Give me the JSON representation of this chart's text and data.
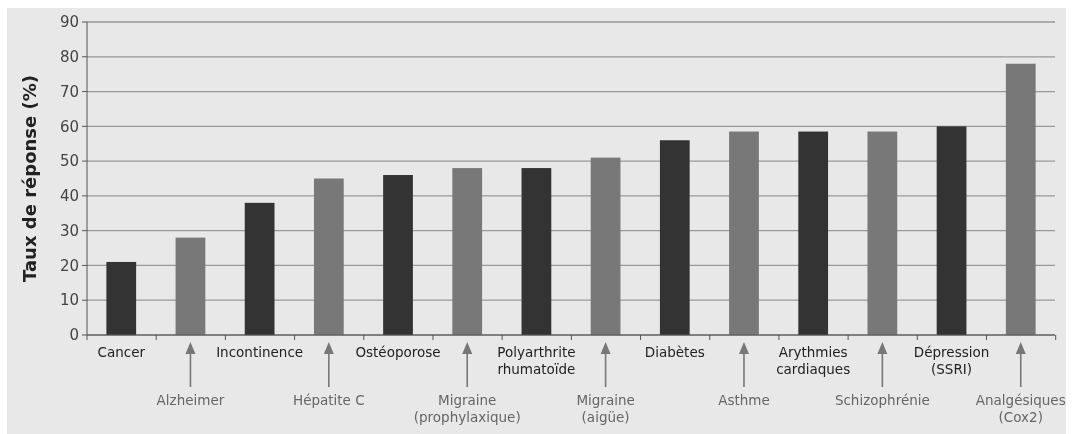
{
  "chart_data": {
    "type": "bar",
    "ylabel": "Taux de réponse (%)",
    "categories": [
      "Cancer",
      "Alzheimer",
      "Incontinence",
      "Hépatite C",
      "Ostéoporose",
      "Migraine\n(prophylaxique)",
      "Polyarthrite\nrhumatoïde",
      "Migraine\n(aigüe)",
      "Diabètes",
      "Asthme",
      "Arythmies\ncardiaques",
      "Schizophrénie",
      "Dépression\n(SSRI)",
      "Analgésiques\n(Cox2)"
    ],
    "values": [
      21,
      28,
      38,
      45,
      46,
      48,
      48,
      51,
      56,
      58.5,
      58.5,
      58.5,
      60,
      78
    ],
    "colors": [
      "#333333",
      "#787878",
      "#333333",
      "#787878",
      "#333333",
      "#787878",
      "#333333",
      "#787878",
      "#333333",
      "#787878",
      "#333333",
      "#787878",
      "#333333",
      "#787878"
    ],
    "ylim": [
      0,
      90
    ],
    "yticks": [
      0,
      10,
      20,
      30,
      40,
      50,
      60,
      70,
      80,
      90
    ],
    "grid": "y"
  }
}
